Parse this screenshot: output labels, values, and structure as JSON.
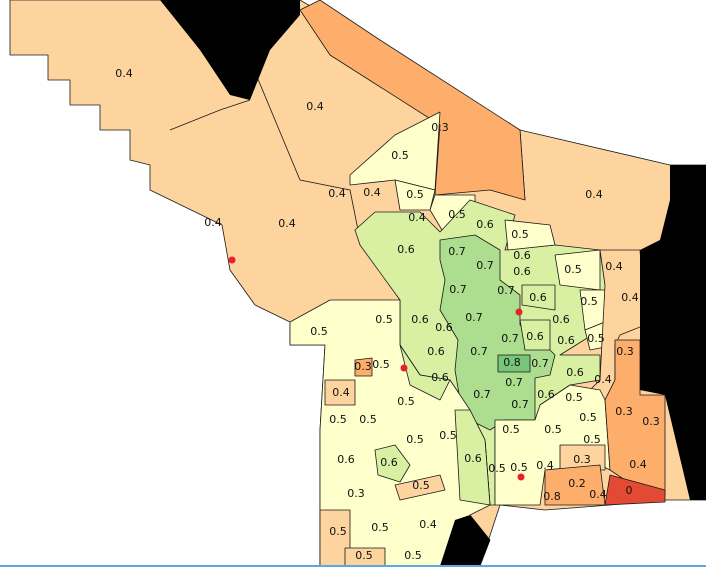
{
  "map": {
    "classes": {
      "0": "#fdd49e",
      "0.2": "#e34a33",
      "0.3": "#fdae6b",
      "0.4": "#fdd49e",
      "0.5": "#ffffcc",
      "0.6": "#d9f0a3",
      "0.7": "#addd8e",
      "0.8": "#78c679"
    },
    "water_color": "#000000",
    "point_color": "#e8202a",
    "region_labels": [
      "0.4",
      "0.4",
      "0.3",
      "0.5",
      "0.4",
      "0.4",
      "0.4",
      "0.4",
      "0.4",
      "0.5",
      "0.4",
      "0.5",
      "0.6",
      "0.5",
      "0.6",
      "0.7",
      "0.7",
      "0.6",
      "0.6",
      "0.5",
      "0.4",
      "0.4",
      "0.7",
      "0.7",
      "0.6",
      "0.5",
      "0.6",
      "0.6",
      "0.7",
      "0.7",
      "0.6",
      "0.6",
      "0.6",
      "0.5",
      "0.5",
      "0.5",
      "0.6",
      "0.7",
      "0.8",
      "0.7",
      "0.6",
      "0.3",
      "0.5",
      "0.3",
      "0.4",
      "0.5",
      "0.5",
      "0.6",
      "0.7",
      "0.7",
      "0.7",
      "0.6",
      "0.5",
      "0.4",
      "0.3",
      "0.3",
      "0.5",
      "0.5",
      "0.5",
      "0.5",
      "0.5",
      "0.5",
      "0.5",
      "0.6",
      "0.6",
      "0.6",
      "0.5",
      "0.5",
      "0.4",
      "0.3",
      "0.4",
      "0.5",
      "0.3",
      "0.2",
      "0",
      "0.8",
      "0.4",
      "0.5",
      "0.5",
      "0.4",
      "0.5",
      "0.5"
    ]
  }
}
